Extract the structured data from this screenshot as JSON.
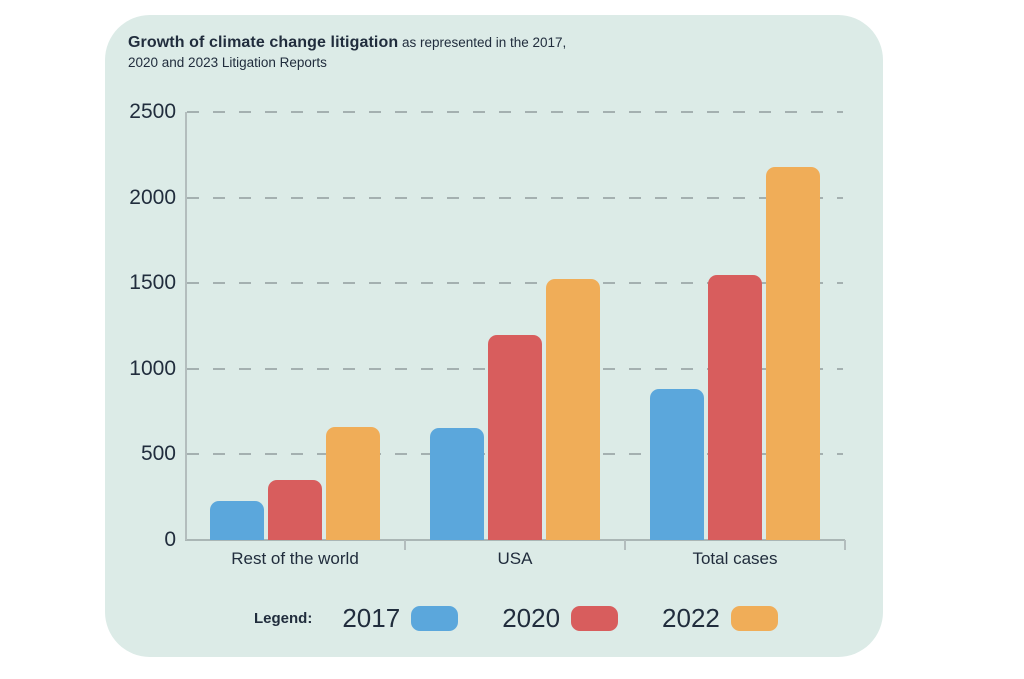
{
  "colors": {
    "page_background": "#FFFFFF",
    "panel_background": "#DCEBE7",
    "text": "#212D3D",
    "gridline": "#9AA6A6",
    "axis": "#B3BDBD",
    "series_2017": "#5BA7DC",
    "series_2020": "#D85D5D",
    "series_2022": "#F0AD58"
  },
  "title": {
    "bold": "Growth of climate change litigation",
    "regular": " as represented in the 2017,",
    "line2": "2020 and 2023 Litigation Reports"
  },
  "chart_data": {
    "type": "bar",
    "title": "Growth of climate change litigation as represented in the 2017, 2020 and 2023 Litigation Reports",
    "categories": [
      "Rest of the world",
      "USA",
      "Total cases"
    ],
    "series": [
      {
        "name": "2017",
        "color": "#5BA7DC",
        "values": [
          230,
          654,
          884
        ]
      },
      {
        "name": "2020",
        "color": "#D85D5D",
        "values": [
          350,
          1200,
          1550
        ]
      },
      {
        "name": "2022",
        "color": "#F0AD58",
        "values": [
          658,
          1522,
          2180
        ]
      }
    ],
    "xlabel": "",
    "ylabel": "",
    "ylim": [
      0,
      2500
    ],
    "y_ticks": [
      0,
      500,
      1000,
      1500,
      2000,
      2500
    ],
    "grid": "horizontal dashed",
    "legend_position": "bottom"
  },
  "legend": {
    "label": "Legend:",
    "items": [
      {
        "year": "2017",
        "color": "#5BA7DC"
      },
      {
        "year": "2020",
        "color": "#D85D5D"
      },
      {
        "year": "2022",
        "color": "#F0AD58"
      }
    ]
  }
}
